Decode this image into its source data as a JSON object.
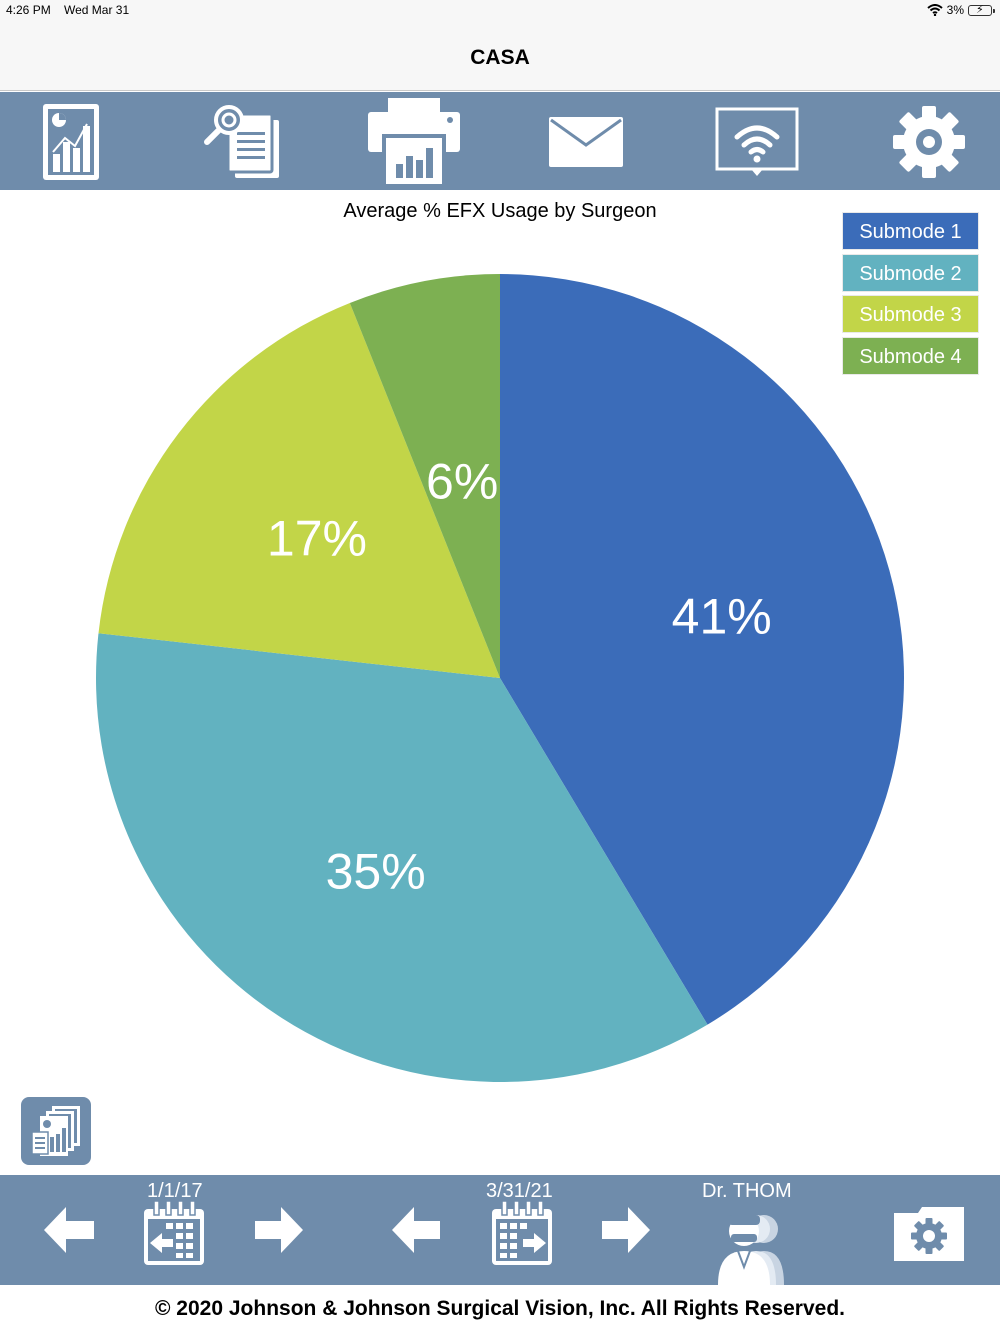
{
  "status_bar": {
    "time": "4:26 PM",
    "date": "Wed Mar 31",
    "battery": "3%"
  },
  "nav": {
    "title": "CASA"
  },
  "toolbar": {
    "items": [
      {
        "icon": "report-chart-icon"
      },
      {
        "icon": "search-document-icon"
      },
      {
        "icon": "print-icon"
      },
      {
        "icon": "mail-icon"
      },
      {
        "icon": "wifi-display-icon"
      },
      {
        "icon": "gear-icon"
      }
    ]
  },
  "colors": {
    "toolbar_bg": "#6f8cab",
    "submode_1": "#3b6cb9",
    "submode_2": "#62b2c0",
    "submode_3": "#c2d548",
    "submode_4": "#7db052"
  },
  "chart_data": {
    "type": "pie",
    "title": "Average % EFX Usage by Surgeon",
    "legend_position": "top-right",
    "slices": [
      {
        "label": "Submode 1",
        "value": 41,
        "display": "41%",
        "color": "#3b6cb9"
      },
      {
        "label": "Submode 2",
        "value": 35,
        "display": "35%",
        "color": "#62b2c0"
      },
      {
        "label": "Submode 3",
        "value": 17,
        "display": "17%",
        "color": "#c2d548"
      },
      {
        "label": "Submode 4",
        "value": 6,
        "display": "6%",
        "color": "#7db052"
      }
    ]
  },
  "bottom_bar": {
    "start_date": "1/1/17",
    "end_date": "3/31/21",
    "surgeon": "Dr. THOM"
  },
  "footer": {
    "text": "© 2020 Johnson & Johnson Surgical Vision, Inc.  All Rights Reserved."
  }
}
